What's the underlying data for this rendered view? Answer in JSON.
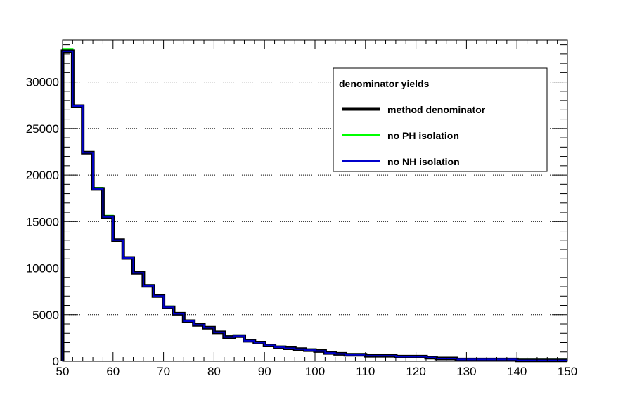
{
  "chart_data": {
    "type": "line",
    "subtype": "step-histogram",
    "title": "",
    "xlabel": "",
    "ylabel": "",
    "xlim": [
      50,
      150
    ],
    "ylim": [
      0,
      34500
    ],
    "x_ticks": [
      50,
      60,
      70,
      80,
      90,
      100,
      110,
      120,
      130,
      140,
      150
    ],
    "y_ticks": [
      0,
      5000,
      10000,
      15000,
      20000,
      25000,
      30000
    ],
    "grid": "horizontal-dotted",
    "bin_edges": [
      50,
      52,
      54,
      56,
      58,
      60,
      62,
      64,
      66,
      68,
      70,
      72,
      74,
      76,
      78,
      80,
      82,
      84,
      86,
      88,
      90,
      92,
      94,
      96,
      98,
      100,
      102,
      104,
      106,
      108,
      110,
      112,
      114,
      116,
      118,
      120,
      122,
      124,
      126,
      128,
      130,
      132,
      134,
      136,
      138,
      140,
      142,
      144,
      146,
      148,
      150
    ],
    "legend": {
      "title": "denominator yields",
      "position": "top-right"
    },
    "series": [
      {
        "name": "method denominator",
        "color": "#000000",
        "values": [
          33300,
          27400,
          22400,
          18500,
          15500,
          13000,
          11100,
          9500,
          8100,
          7000,
          5800,
          5100,
          4300,
          3900,
          3600,
          3100,
          2600,
          2700,
          2200,
          2000,
          1700,
          1500,
          1400,
          1300,
          1200,
          1100,
          900,
          800,
          700,
          700,
          600,
          600,
          600,
          500,
          500,
          500,
          400,
          300,
          300,
          200,
          200,
          200,
          200,
          200,
          200,
          100,
          100,
          100,
          100,
          100
        ]
      },
      {
        "name": "no PH isolation",
        "color": "#00ff00",
        "values": [
          33500,
          27500,
          22500,
          18650,
          15650,
          13100,
          11200,
          9600,
          8200,
          7100,
          5900,
          5200,
          4400,
          4000,
          3700,
          3200,
          2700,
          2800,
          2300,
          2100,
          1800,
          1600,
          1500,
          1400,
          1300,
          1200,
          1000,
          900,
          800,
          800,
          700,
          700,
          700,
          600,
          600,
          600,
          500,
          400,
          400,
          300,
          300,
          300,
          300,
          300,
          300,
          200,
          200,
          200,
          200,
          200
        ]
      },
      {
        "name": "no NH isolation",
        "color": "#0000cc",
        "values": [
          33300,
          27400,
          22400,
          18500,
          15500,
          13000,
          11100,
          9500,
          8100,
          7000,
          5800,
          5100,
          4300,
          3900,
          3600,
          3100,
          2600,
          2700,
          2200,
          2000,
          1700,
          1500,
          1400,
          1300,
          1200,
          1100,
          900,
          800,
          700,
          700,
          600,
          600,
          600,
          500,
          500,
          500,
          400,
          300,
          300,
          200,
          200,
          200,
          200,
          200,
          200,
          100,
          100,
          100,
          100,
          100
        ]
      }
    ]
  }
}
